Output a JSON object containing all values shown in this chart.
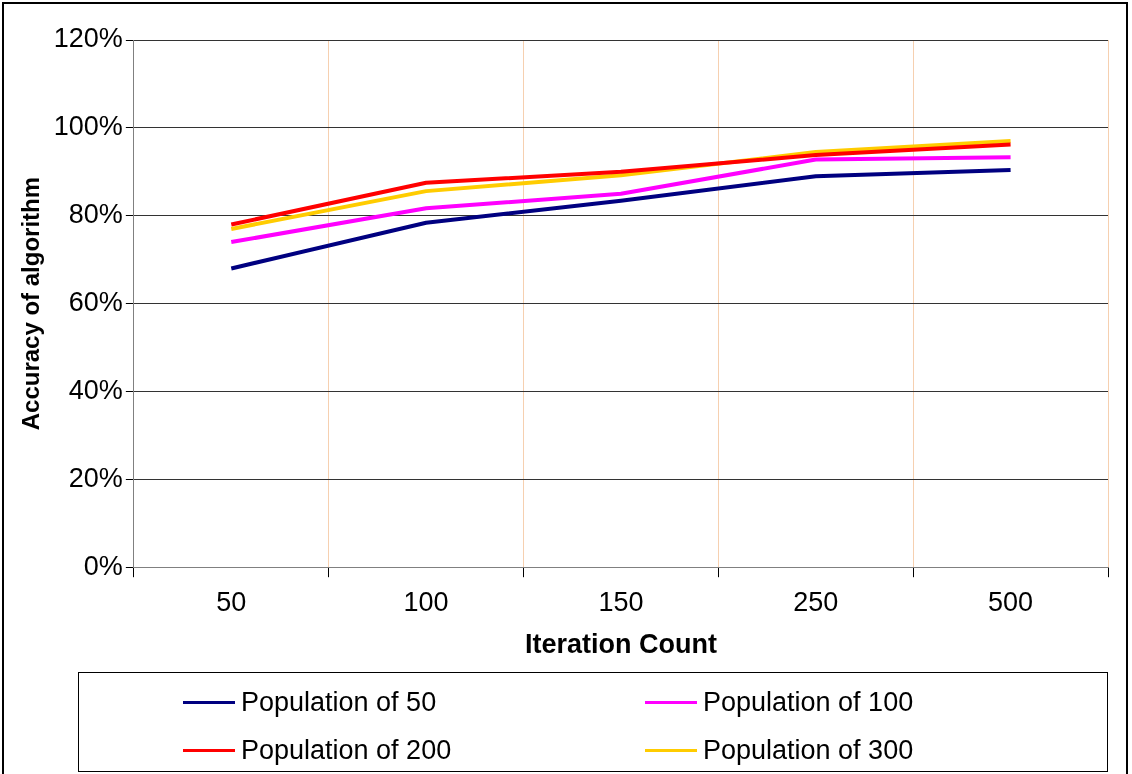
{
  "chart_data": {
    "type": "line",
    "xlabel": "Iteration Count",
    "ylabel": "Accuracy of algorithm",
    "categories": [
      "50",
      "100",
      "150",
      "250",
      "500"
    ],
    "series": [
      {
        "name": "Population of 50",
        "color": "#000080",
        "values": [
          68,
          78.4,
          83.4,
          89,
          90.4
        ]
      },
      {
        "name": "Population of 100",
        "color": "#ff00ff",
        "values": [
          74,
          81.7,
          85,
          92.8,
          93.3
        ]
      },
      {
        "name": "Population of 200",
        "color": "#ff0000",
        "values": [
          78,
          87.5,
          90,
          93.8,
          96.2
        ]
      },
      {
        "name": "Population of 300",
        "color": "#ffcc00",
        "values": [
          77,
          85.6,
          89.2,
          94.5,
          97
        ]
      }
    ],
    "ylim": [
      0,
      120
    ],
    "yticks": [
      {
        "value": 0,
        "label": "0%"
      },
      {
        "value": 20,
        "label": "20%"
      },
      {
        "value": 40,
        "label": "40%"
      },
      {
        "value": 60,
        "label": "60%"
      },
      {
        "value": 80,
        "label": "80%"
      },
      {
        "value": 100,
        "label": "100%"
      },
      {
        "value": 120,
        "label": "120%"
      }
    ],
    "grid": true,
    "legend": "bottom",
    "marker": "none",
    "line_style": "solid"
  }
}
